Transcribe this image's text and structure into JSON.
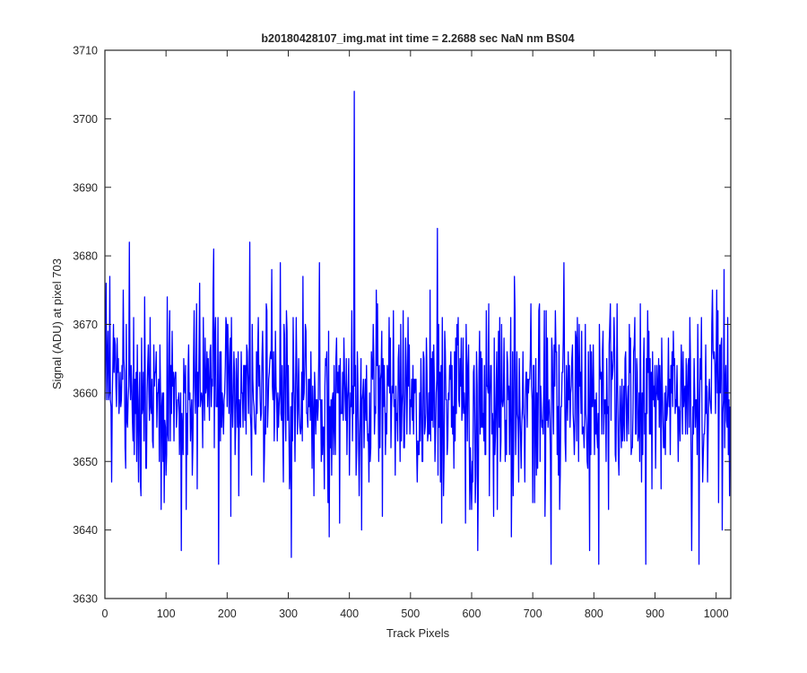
{
  "chart_data": {
    "type": "line",
    "title": "b20180428107_img.mat int time = 2.2688 sec  NaN nm BS04",
    "xlabel": "Track Pixels",
    "ylabel": "Signal (ADU) at pixel 703",
    "xlim": [
      0,
      1024
    ],
    "ylim": [
      3630,
      3710
    ],
    "xticks": [
      0,
      100,
      200,
      300,
      400,
      500,
      600,
      700,
      800,
      900,
      1000
    ],
    "yticks": [
      3630,
      3640,
      3650,
      3660,
      3670,
      3680,
      3690,
      3700,
      3710
    ],
    "grid": false,
    "legend": "none",
    "series": [
      {
        "color": "#0000ff",
        "baseline_mean": 3659,
        "noise_sd": 7,
        "n_points": 1024,
        "visible_peaks": [
          {
            "x": 408,
            "y": 3704
          },
          {
            "x": 40,
            "y": 3682
          },
          {
            "x": 237,
            "y": 3682
          },
          {
            "x": 544,
            "y": 3684
          },
          {
            "x": 178,
            "y": 3681
          },
          {
            "x": 730,
            "y": 3680
          }
        ],
        "visible_troughs": [
          {
            "x": 125,
            "y": 3637
          },
          {
            "x": 186,
            "y": 3635
          },
          {
            "x": 305,
            "y": 3636
          },
          {
            "x": 367,
            "y": 3639
          },
          {
            "x": 420,
            "y": 3640
          },
          {
            "x": 610,
            "y": 3637
          },
          {
            "x": 730,
            "y": 3635
          },
          {
            "x": 808,
            "y": 3635
          },
          {
            "x": 885,
            "y": 3635
          },
          {
            "x": 960,
            "y": 3637
          },
          {
            "x": 972,
            "y": 3635
          },
          {
            "x": 1010,
            "y": 3640
          }
        ]
      }
    ]
  }
}
